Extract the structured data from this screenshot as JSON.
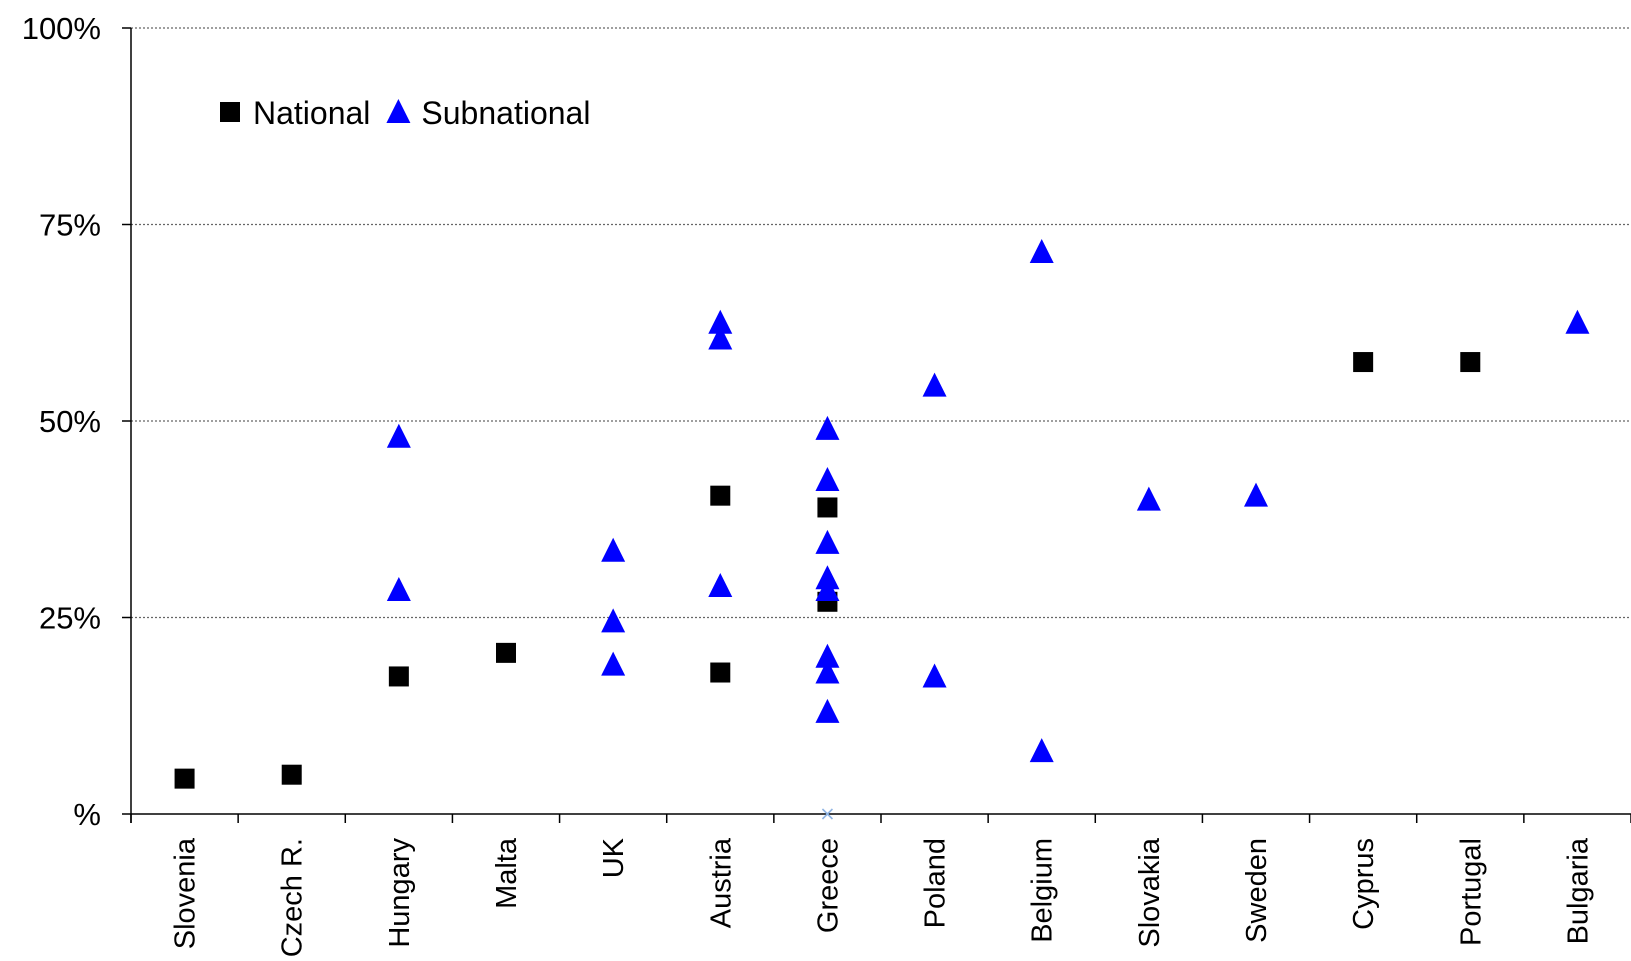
{
  "chart_data": {
    "type": "scatter",
    "categories": [
      "Slovenia",
      "Czech R.",
      "Hungary",
      "Malta",
      "UK",
      "Austria",
      "Greece",
      "Poland",
      "Belgium",
      "Slovakia",
      "Sweden",
      "Cyprus",
      "Portugal",
      "Bulgaria"
    ],
    "y_ticks": [
      {
        "value": 0,
        "label": "%"
      },
      {
        "value": 25,
        "label": "25%"
      },
      {
        "value": 50,
        "label": "50%"
      },
      {
        "value": 75,
        "label": "75%"
      },
      {
        "value": 100,
        "label": "100%"
      }
    ],
    "ylim": [
      0,
      100
    ],
    "grid": "horizontal-dotted",
    "legend": {
      "placement": "top-left"
    },
    "series": [
      {
        "name": "National",
        "marker": "square",
        "color": "#000000",
        "points": [
          {
            "category": "Slovenia",
            "y": 4.5
          },
          {
            "category": "Czech R.",
            "y": 5
          },
          {
            "category": "Hungary",
            "y": 17.5
          },
          {
            "category": "Malta",
            "y": 20.5
          },
          {
            "category": "Austria",
            "y": 40.5
          },
          {
            "category": "Austria",
            "y": 18
          },
          {
            "category": "Greece",
            "y": 39
          },
          {
            "category": "Greece",
            "y": 27
          },
          {
            "category": "Cyprus",
            "y": 57.5
          },
          {
            "category": "Portugal",
            "y": 57.5
          }
        ]
      },
      {
        "name": "Subnational",
        "marker": "triangle",
        "color": "#0000ff",
        "points": [
          {
            "category": "Hungary",
            "y": 48
          },
          {
            "category": "Hungary",
            "y": 28.5
          },
          {
            "category": "UK",
            "y": 33.5
          },
          {
            "category": "UK",
            "y": 24.5
          },
          {
            "category": "UK",
            "y": 19
          },
          {
            "category": "Austria",
            "y": 62.5
          },
          {
            "category": "Austria",
            "y": 60.5
          },
          {
            "category": "Austria",
            "y": 29
          },
          {
            "category": "Greece",
            "y": 49
          },
          {
            "category": "Greece",
            "y": 42.5
          },
          {
            "category": "Greece",
            "y": 34.5
          },
          {
            "category": "Greece",
            "y": 30
          },
          {
            "category": "Greece",
            "y": 28.5
          },
          {
            "category": "Greece",
            "y": 20
          },
          {
            "category": "Greece",
            "y": 18
          },
          {
            "category": "Greece",
            "y": 13
          },
          {
            "category": "Poland",
            "y": 54.5
          },
          {
            "category": "Poland",
            "y": 17.5
          },
          {
            "category": "Belgium",
            "y": 71.5
          },
          {
            "category": "Belgium",
            "y": 8
          },
          {
            "category": "Slovakia",
            "y": 40
          },
          {
            "category": "Sweden",
            "y": 40.5
          },
          {
            "category": "Bulgaria",
            "y": 62.5
          }
        ]
      },
      {
        "marker": "x",
        "color": "#8fb4e3",
        "points": [
          {
            "category": "Greece",
            "y": 0
          }
        ]
      }
    ]
  }
}
